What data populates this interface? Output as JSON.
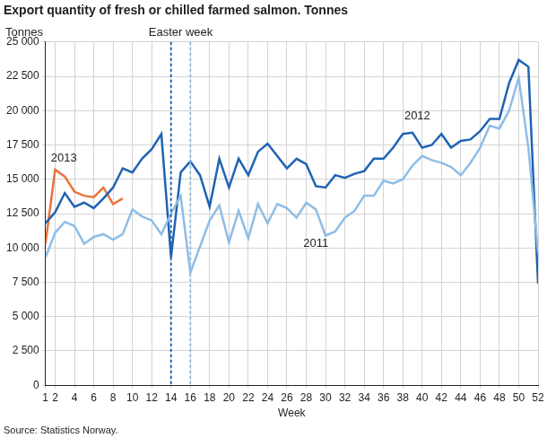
{
  "chart_data": {
    "type": "line",
    "title": "Export quantity of fresh or chilled farmed salmon. Tonnes",
    "y_label": "Tonnes",
    "x_label": "Week",
    "source": "Source: Statistics Norway.",
    "x": [
      1,
      2,
      3,
      4,
      5,
      6,
      7,
      8,
      9,
      10,
      11,
      12,
      13,
      14,
      15,
      16,
      17,
      18,
      19,
      20,
      21,
      22,
      23,
      24,
      25,
      26,
      27,
      28,
      29,
      30,
      31,
      32,
      33,
      34,
      35,
      36,
      37,
      38,
      39,
      40,
      41,
      42,
      43,
      44,
      45,
      46,
      47,
      48,
      49,
      50,
      51,
      52
    ],
    "xlim": [
      1,
      52
    ],
    "xticks": [
      1,
      2,
      4,
      6,
      8,
      10,
      12,
      14,
      16,
      18,
      20,
      22,
      24,
      26,
      28,
      30,
      32,
      34,
      36,
      38,
      40,
      42,
      44,
      46,
      48,
      50,
      52
    ],
    "ylim": [
      0,
      25000
    ],
    "yticks": [
      0,
      {
        "value": 2500,
        "label": "2 500"
      },
      {
        "value": 5000,
        "label": "5 000"
      },
      {
        "value": 7500,
        "label": "7 500"
      },
      {
        "value": 10000,
        "label": "10 000"
      },
      {
        "value": 12500,
        "label": "12 500"
      },
      {
        "value": 15000,
        "label": "15 000"
      },
      {
        "value": 17500,
        "label": "17 500"
      },
      {
        "value": 20000,
        "label": "20 000"
      },
      {
        "value": 22500,
        "label": "22 500"
      },
      {
        "value": 25000,
        "label": "25 000"
      }
    ],
    "grid": true,
    "legend": "none",
    "series": [
      {
        "name": "2011",
        "color": "#8ebde6",
        "easter_week": 16,
        "label_position": {
          "x": 29,
          "y": 10300
        },
        "values": [
          9300,
          11100,
          11900,
          11600,
          10300,
          10800,
          11000,
          10600,
          11000,
          12800,
          12300,
          12000,
          11000,
          12500,
          13800,
          8200,
          10100,
          12000,
          13100,
          10400,
          12700,
          10700,
          13200,
          11800,
          13200,
          12900,
          12200,
          13300,
          12800,
          10900,
          11200,
          12200,
          12700,
          13800,
          13800,
          14900,
          14700,
          15000,
          16000,
          16700,
          16400,
          16200,
          15900,
          15300,
          16200,
          17300,
          18900,
          18700,
          20000,
          22400,
          17300,
          9700
        ]
      },
      {
        "name": "2012",
        "color": "#1f63b4",
        "easter_week": 14,
        "label_position": {
          "x": 39.5,
          "y": 19600
        },
        "values": [
          11800,
          12600,
          14000,
          13000,
          13300,
          12900,
          13600,
          14400,
          15800,
          15500,
          16500,
          17200,
          18300,
          9300,
          15500,
          16300,
          15300,
          13000,
          16500,
          14400,
          16500,
          15300,
          17000,
          17600,
          16700,
          15800,
          16500,
          16100,
          14500,
          14400,
          15300,
          15100,
          15400,
          15600,
          16500,
          16500,
          17300,
          18300,
          18400,
          17300,
          17500,
          18300,
          17300,
          17800,
          17900,
          18500,
          19400,
          19400,
          22000,
          23700,
          23200,
          7400
        ]
      },
      {
        "name": "2013",
        "color": "#e8743b",
        "label_position": {
          "x": 2.9,
          "y": 16500
        },
        "values": [
          10300,
          15700,
          15200,
          14100,
          13800,
          13700,
          14400,
          13200,
          13600,
          null,
          null,
          null,
          null,
          null,
          null,
          null,
          null,
          null,
          null,
          null,
          null,
          null,
          null,
          null,
          null,
          null,
          null,
          null,
          null,
          null,
          null,
          null,
          null,
          null,
          null,
          null,
          null,
          null,
          null,
          null,
          null,
          null,
          null,
          null,
          null,
          null,
          null,
          null,
          null,
          null,
          null,
          null
        ]
      }
    ],
    "annotations": [
      {
        "text": "Easter week",
        "x": 15
      }
    ]
  }
}
